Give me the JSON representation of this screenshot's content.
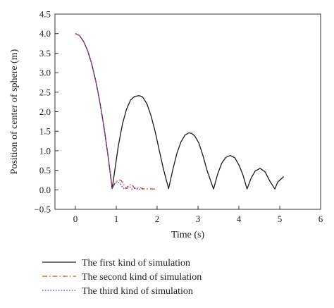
{
  "chart_data": {
    "type": "line",
    "title": "",
    "xlabel": "Time (s)",
    "ylabel": "Position of center of sphere (m)",
    "xlim": [
      -0.5,
      6
    ],
    "ylim": [
      -0.5,
      4.5
    ],
    "xticks": [
      0,
      1,
      2,
      3,
      4,
      5,
      6
    ],
    "yticks": [
      -0.5,
      0.0,
      0.5,
      1.0,
      1.5,
      2.0,
      2.5,
      3.0,
      3.5,
      4.0,
      4.5
    ],
    "xtick_labels": [
      "0",
      "1",
      "2",
      "3",
      "4",
      "5",
      "6"
    ],
    "ytick_labels": [
      "−0.5",
      "0.0",
      "0.5",
      "1.0",
      "1.5",
      "2.0",
      "2.5",
      "3.0",
      "3.5",
      "4.0",
      "4.5"
    ],
    "grid": false,
    "legend_position": "bottom",
    "series": [
      {
        "name": "The first kind of simulation",
        "color": "#1a1a1a",
        "dash": "solid",
        "x": [
          0,
          0.1,
          0.2,
          0.3,
          0.4,
          0.5,
          0.6,
          0.7,
          0.8,
          0.9,
          0.95,
          1.05,
          1.15,
          1.25,
          1.35,
          1.45,
          1.55,
          1.6,
          1.65,
          1.75,
          1.85,
          1.95,
          2.05,
          2.15,
          2.28,
          2.38,
          2.48,
          2.58,
          2.68,
          2.78,
          2.85,
          2.92,
          3.02,
          3.12,
          3.22,
          3.38,
          3.48,
          3.58,
          3.68,
          3.79,
          3.9,
          4.0,
          4.1,
          4.2,
          4.3,
          4.4,
          4.52,
          4.64,
          4.76,
          4.88,
          4.95,
          5.1
        ],
        "y": [
          4.0,
          3.95,
          3.8,
          3.56,
          3.22,
          2.78,
          2.24,
          1.6,
          0.86,
          0.03,
          0.4,
          1.12,
          1.68,
          2.06,
          2.3,
          2.39,
          2.41,
          2.4,
          2.37,
          2.2,
          1.9,
          1.5,
          1.02,
          0.55,
          0.03,
          0.5,
          0.92,
          1.22,
          1.4,
          1.46,
          1.44,
          1.38,
          1.2,
          0.88,
          0.5,
          0.02,
          0.4,
          0.68,
          0.83,
          0.88,
          0.82,
          0.64,
          0.38,
          0.02,
          0.3,
          0.48,
          0.55,
          0.46,
          0.22,
          0.02,
          0.2,
          0.34
        ]
      },
      {
        "name": "The second kind of simulation",
        "color": "#d2491b",
        "dash": "dashdot",
        "x": [
          0,
          0.1,
          0.2,
          0.3,
          0.4,
          0.5,
          0.6,
          0.7,
          0.8,
          0.9,
          0.97,
          1.05,
          1.12,
          1.19,
          1.26,
          1.32,
          1.38,
          1.44,
          1.5,
          1.56,
          1.62,
          1.7,
          1.8,
          1.9,
          2.0
        ],
        "y": [
          4.0,
          3.95,
          3.8,
          3.56,
          3.22,
          2.78,
          2.24,
          1.6,
          0.86,
          0.03,
          0.18,
          0.26,
          0.24,
          0.12,
          0.03,
          0.13,
          0.14,
          0.05,
          0.02,
          0.07,
          0.04,
          0.02,
          0.03,
          0.02,
          0.02
        ]
      },
      {
        "name": "The third kind of simulation",
        "color": "#3a3fd6",
        "dash": "dotted",
        "x": [
          0,
          0.1,
          0.2,
          0.3,
          0.4,
          0.5,
          0.6,
          0.7,
          0.8,
          0.9,
          0.96,
          1.02,
          1.09,
          1.16,
          1.22,
          1.28,
          1.33,
          1.38,
          1.43,
          1.5,
          1.57,
          1.65
        ],
        "y": [
          4.0,
          3.95,
          3.8,
          3.56,
          3.22,
          2.78,
          2.24,
          1.6,
          0.86,
          0.03,
          0.14,
          0.2,
          0.17,
          0.05,
          0.02,
          0.09,
          0.08,
          0.02,
          0.04,
          0.02,
          0.02,
          0.02
        ]
      }
    ]
  }
}
